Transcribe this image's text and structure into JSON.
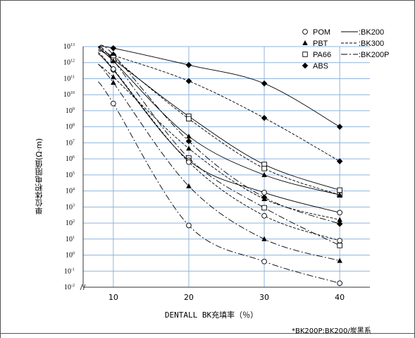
{
  "chart_data": {
    "type": "line",
    "title": "",
    "xlabel": "DENTALL BK充填率（％）",
    "ylabel": "単位体积电阻值(Ω·m)",
    "footnote": "*BK200P:BK200/炭黑系",
    "x_ticks": [
      10,
      20,
      30,
      40
    ],
    "xlim": [
      6,
      44
    ],
    "y_scale": "log",
    "ylim": [
      2,
      13
    ],
    "y_ticks": [
      {
        "base": "10",
        "exp": "13"
      },
      {
        "base": "10",
        "exp": "12"
      },
      {
        "base": "10",
        "exp": "11"
      },
      {
        "base": "10",
        "exp": "10"
      },
      {
        "base": "10",
        "exp": "9"
      },
      {
        "base": "10",
        "exp": "8"
      },
      {
        "base": "10",
        "exp": "7"
      },
      {
        "base": "10",
        "exp": "6"
      },
      {
        "base": "10",
        "exp": "5"
      },
      {
        "base": "10",
        "exp": "4"
      },
      {
        "base": "10",
        "exp": "3"
      },
      {
        "base": "10",
        "exp": "2"
      },
      {
        "base": "10",
        "exp": "1"
      },
      {
        "base": "10",
        "exp": "0"
      },
      {
        "base": "10",
        "exp": "-1"
      },
      {
        "base": "10",
        "exp": "-2"
      }
    ],
    "y_tick_values": [
      13,
      12,
      11,
      10,
      9,
      8,
      7,
      6,
      5,
      4,
      3,
      2,
      1,
      0,
      -1,
      -2
    ],
    "ymin_log": -2,
    "ymax_log": 13,
    "grid": true,
    "legend_materials": [
      {
        "label": "POM",
        "marker": "circle-open"
      },
      {
        "label": "PBT",
        "marker": "triangle-filled"
      },
      {
        "label": "PA66",
        "marker": "square-open"
      },
      {
        "label": "ABS",
        "marker": "diamond-filled"
      }
    ],
    "legend_lines": [
      {
        "label": ":BK200",
        "style": "solid"
      },
      {
        "label": ":BK300",
        "style": "dashed"
      },
      {
        "label": ":BK200P",
        "style": "dashdot"
      }
    ],
    "series": [
      {
        "material": "ABS",
        "grade": "BK200",
        "x": [
          10,
          20,
          30,
          40
        ],
        "y": [
          12.9,
          11.85,
          10.7,
          8.0
        ]
      },
      {
        "material": "ABS",
        "grade": "BK300",
        "x": [
          10,
          20,
          30,
          40
        ],
        "y": [
          12.45,
          10.85,
          8.55,
          5.85
        ]
      },
      {
        "material": "ABS",
        "grade": "BK200P",
        "x": [
          10,
          20,
          30,
          40
        ],
        "y": [
          12.5,
          7.1,
          3.6,
          1.95
        ]
      },
      {
        "material": "PA66",
        "grade": "BK200",
        "x": [
          10,
          20,
          30,
          40
        ],
        "y": [
          12.2,
          8.65,
          5.65,
          4.05
        ]
      },
      {
        "material": "PA66",
        "grade": "BK300",
        "x": [
          10,
          20,
          30,
          40
        ],
        "y": [
          12.3,
          8.5,
          5.4,
          3.75
        ]
      },
      {
        "material": "PA66",
        "grade": "BK200P",
        "x": [
          10,
          20,
          30,
          40
        ],
        "y": [
          12.15,
          6.05,
          2.95,
          0.6
        ]
      },
      {
        "material": "PBT",
        "grade": "BK200",
        "x": [
          10,
          20,
          30,
          40
        ],
        "y": [
          12.1,
          7.4,
          5.0,
          3.75
        ]
      },
      {
        "material": "PBT",
        "grade": "BK300",
        "x": [
          10,
          20,
          30,
          40
        ],
        "y": [
          11.1,
          6.65,
          3.5,
          2.2
        ]
      },
      {
        "material": "PBT",
        "grade": "BK200P",
        "x": [
          10,
          20,
          30,
          40
        ],
        "y": [
          10.75,
          4.3,
          1.0,
          -0.35
        ]
      },
      {
        "material": "POM",
        "grade": "BK200",
        "x": [
          10,
          20,
          30,
          40
        ],
        "y": [
          11.55,
          5.9,
          3.9,
          2.65
        ]
      },
      {
        "material": "POM",
        "grade": "BK300",
        "x": [
          10,
          20,
          30,
          40
        ],
        "y": [
          11.6,
          5.8,
          2.45,
          0.9
        ]
      },
      {
        "material": "POM",
        "grade": "BK200P",
        "x": [
          10,
          20,
          30,
          40
        ],
        "y": [
          9.45,
          1.85,
          -0.4,
          -1.75
        ]
      }
    ]
  }
}
